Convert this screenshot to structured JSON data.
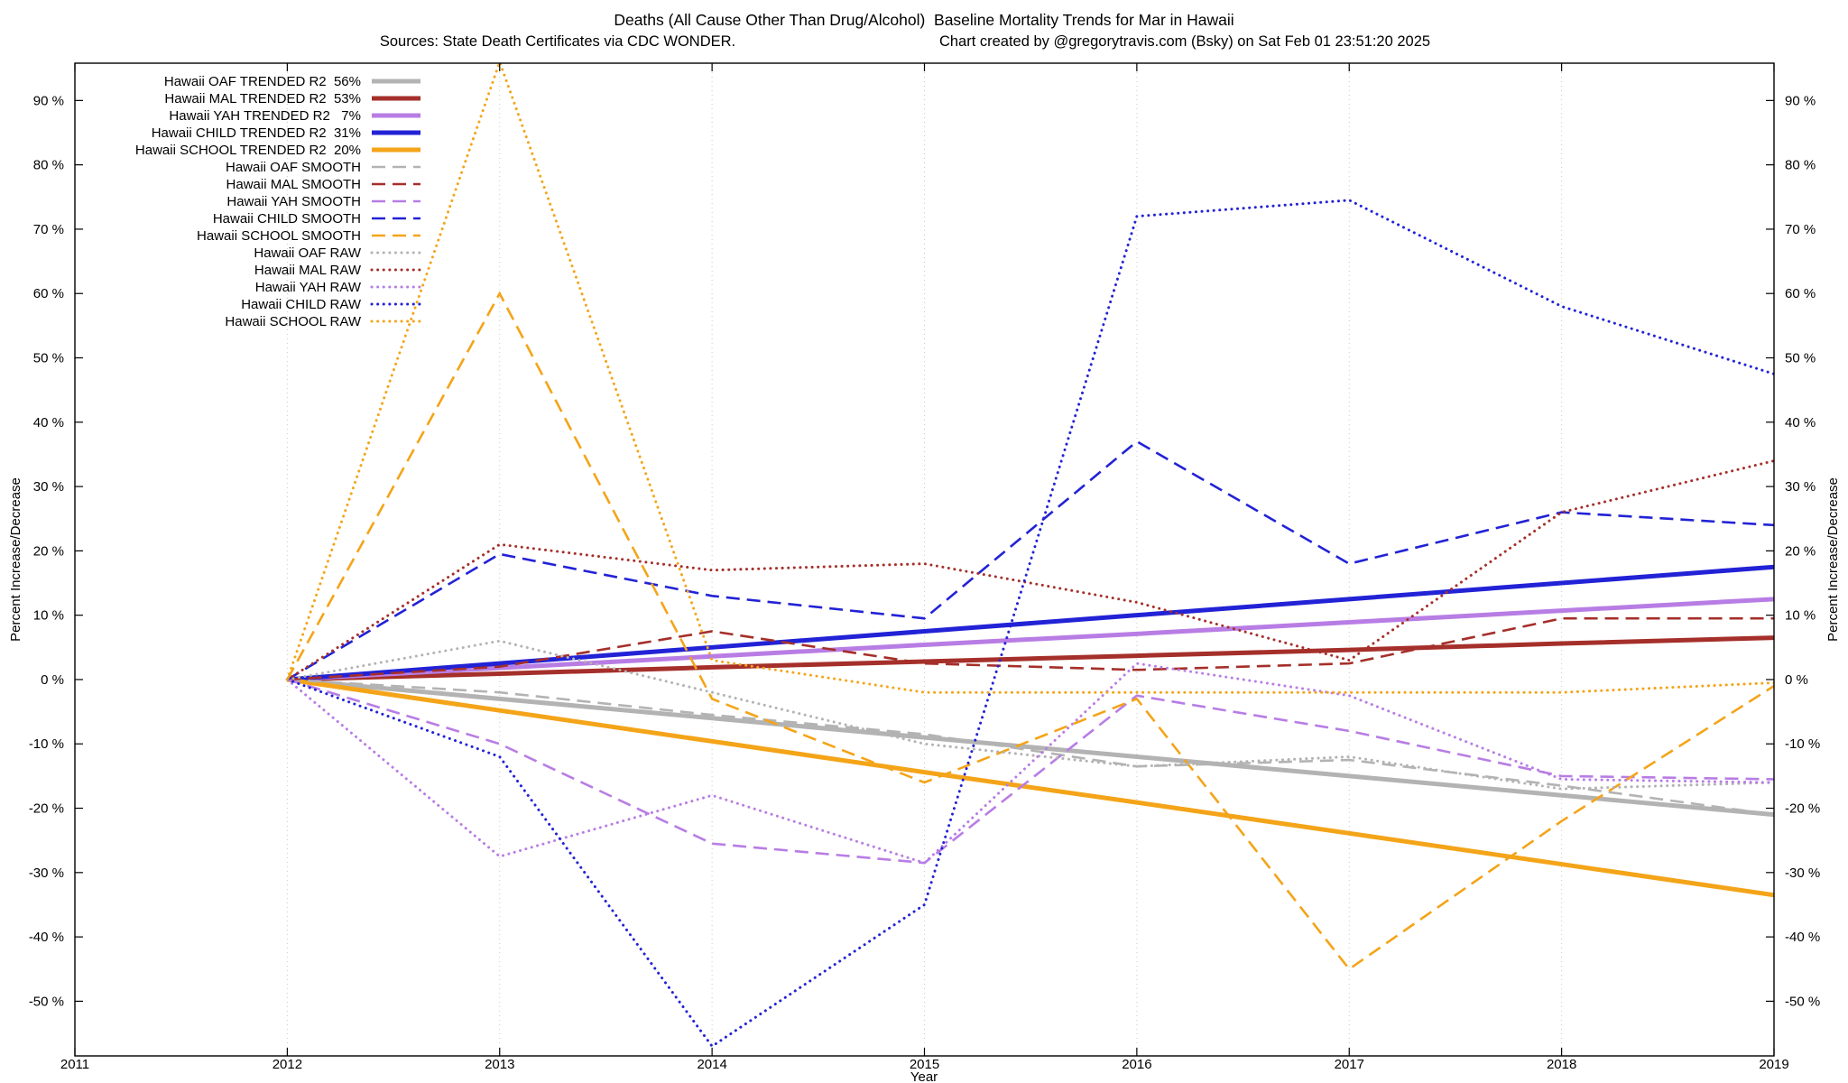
{
  "header": {
    "title": "Deaths (All Cause Other Than Drug/Alcohol)  Baseline Mortality Trends for Mar in Hawaii",
    "source_note": "Sources: State Death Certificates via CDC WONDER.",
    "credit_note": "Chart created by @gregorytravis.com (Bsky) on Sat Feb 01 23:51:20 2025"
  },
  "chart_data": {
    "type": "line",
    "title": "Deaths (All Cause Other Than Drug/Alcohol)  Baseline Mortality Trends for Mar in Hawaii",
    "xlabel": "Year",
    "ylabel_left": "Percent Increase/Decrease",
    "ylabel_right": "Percent Increase/Decrease",
    "xlim": [
      2011,
      2019
    ],
    "ylim": [
      -58.5,
      95.8
    ],
    "xticks": [
      2011,
      2012,
      2013,
      2014,
      2015,
      2016,
      2017,
      2018,
      2019
    ],
    "yticks": [
      -50,
      -40,
      -30,
      -20,
      -10,
      0,
      10,
      20,
      30,
      40,
      50,
      60,
      70,
      80,
      90
    ],
    "ytick_suffix": " %",
    "grid": "vertical-dotted",
    "legend_position": "top-left-inside",
    "x": [
      2012,
      2013,
      2014,
      2015,
      2016,
      2017,
      2018,
      2019
    ],
    "series": [
      {
        "id": "oaf-trended",
        "label": "Hawaii OAF TRENDED R2  56%",
        "r2": "56%",
        "color": "#b3b3b3",
        "style": "solid",
        "width": 5,
        "values": [
          0,
          -3,
          -6,
          -9,
          -12,
          -15,
          -18,
          -21
        ]
      },
      {
        "id": "mal-trended",
        "label": "Hawaii MAL TRENDED R2  53%",
        "r2": "53%",
        "color": "#a52f2a",
        "style": "solid",
        "width": 5,
        "values": [
          0,
          0.9,
          1.9,
          2.8,
          3.7,
          4.6,
          5.6,
          6.5
        ]
      },
      {
        "id": "yah-trended",
        "label": "Hawaii YAH TRENDED R2   7%",
        "r2": "7%",
        "color": "#b87de4",
        "style": "solid",
        "width": 5,
        "values": [
          0,
          1.8,
          3.6,
          5.4,
          7.1,
          8.9,
          10.7,
          12.5
        ]
      },
      {
        "id": "child-trended",
        "label": "Hawaii CHILD TRENDED R2  31%",
        "r2": "31%",
        "color": "#2222d6",
        "style": "solid",
        "width": 5,
        "values": [
          0,
          2.5,
          5,
          7.5,
          10,
          12.5,
          15,
          17.5
        ]
      },
      {
        "id": "school-trended",
        "label": "Hawaii SCHOOL TRENDED R2  20%",
        "r2": "20%",
        "color": "#f4a418",
        "style": "solid",
        "width": 5,
        "values": [
          0,
          -4.8,
          -9.6,
          -14.4,
          -19.1,
          -23.9,
          -28.7,
          -33.5
        ]
      },
      {
        "id": "oaf-smooth",
        "label": "Hawaii OAF SMOOTH",
        "color": "#b3b3b3",
        "style": "dashed",
        "width": 2.6,
        "values": [
          0,
          -2,
          -5.5,
          -8.5,
          -13.5,
          -12.5,
          -16.5,
          -21
        ]
      },
      {
        "id": "mal-smooth",
        "label": "Hawaii MAL SMOOTH",
        "color": "#a52f2a",
        "style": "dashed",
        "width": 2.6,
        "values": [
          0,
          2,
          7.5,
          2.5,
          1.5,
          2.5,
          9.5,
          9.5
        ]
      },
      {
        "id": "yah-smooth",
        "label": "Hawaii YAH SMOOTH",
        "color": "#b87de4",
        "style": "dashed",
        "width": 2.6,
        "values": [
          0,
          -10,
          -25.5,
          -28.5,
          -2.5,
          -8,
          -15,
          -15.5
        ]
      },
      {
        "id": "child-smooth",
        "label": "Hawaii CHILD SMOOTH",
        "color": "#2222d6",
        "style": "dashed",
        "width": 2.6,
        "values": [
          0,
          19.5,
          13,
          9.5,
          37,
          18,
          26,
          24
        ]
      },
      {
        "id": "school-smooth",
        "label": "Hawaii SCHOOL SMOOTH",
        "color": "#f4a418",
        "style": "dashed",
        "width": 2.6,
        "values": [
          0,
          60,
          -3,
          -16,
          -3,
          -45,
          -22,
          -1
        ]
      },
      {
        "id": "oaf-raw",
        "label": "Hawaii OAF RAW",
        "color": "#b3b3b3",
        "style": "dotted",
        "width": 3,
        "values": [
          0,
          6,
          -2,
          -10,
          -13.5,
          -12,
          -17,
          -16
        ]
      },
      {
        "id": "mal-raw",
        "label": "Hawaii MAL RAW",
        "color": "#a52f2a",
        "style": "dotted",
        "width": 3,
        "values": [
          0,
          21,
          17,
          18,
          12,
          3,
          26,
          34
        ]
      },
      {
        "id": "yah-raw",
        "label": "Hawaii YAH RAW",
        "color": "#b87de4",
        "style": "dotted",
        "width": 3,
        "values": [
          0,
          -27.5,
          -18,
          -28.5,
          2.5,
          -2.5,
          -15.5,
          -16
        ]
      },
      {
        "id": "child-raw",
        "label": "Hawaii CHILD RAW",
        "color": "#2222d6",
        "style": "dotted",
        "width": 3,
        "values": [
          0,
          -12,
          -57,
          -35,
          72,
          74.5,
          58,
          47.5
        ]
      },
      {
        "id": "school-raw",
        "label": "Hawaii SCHOOL RAW",
        "color": "#f4a418",
        "style": "dotted",
        "width": 3,
        "values": [
          0,
          96,
          3,
          -2,
          -2,
          -2,
          -2,
          -0.5
        ]
      }
    ]
  }
}
